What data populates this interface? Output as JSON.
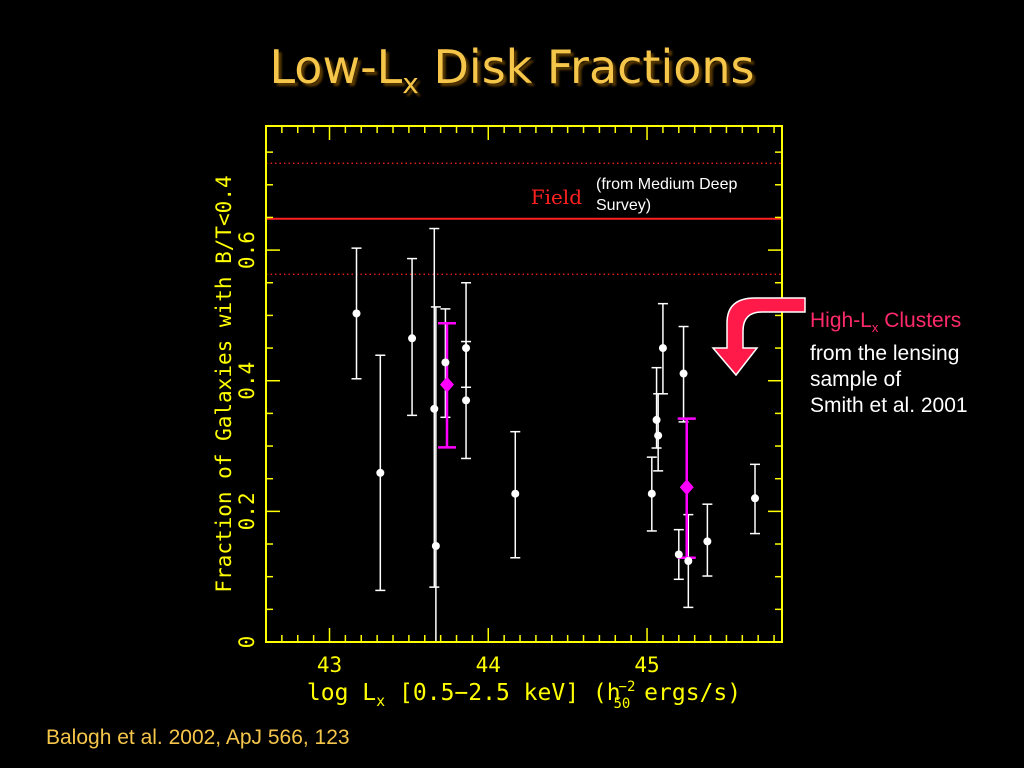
{
  "slide": {
    "title_main": "Low-L",
    "title_sub": "x",
    "title_rest": " Disk Fractions",
    "citation": "Balogh et al. 2002, ApJ 566, 123"
  },
  "callout": {
    "line1_pink": "High-L",
    "line1_sub": "x",
    "line1_rest": " Clusters",
    "line2": "from the lensing",
    "line3": "sample of",
    "line4": "Smith et al. 2001",
    "arrow_color": "#ff1a4a"
  },
  "chart_data": {
    "type": "scatter",
    "xlabel_main": "log L",
    "xlabel_sub": "x",
    "xlabel_rest": " [0.5−2.5 keV] (h",
    "xlabel_h_sub": "50",
    "xlabel_h_sup": "−2",
    "xlabel_end": " ergs/s)",
    "ylabel": "Fraction of Galaxies with B/T<0.4",
    "xlim": [
      42.6,
      45.85
    ],
    "ylim": [
      0,
      0.79
    ],
    "x_ticks": [
      43,
      44,
      45
    ],
    "x_tick_labels": [
      "43",
      "44",
      "45"
    ],
    "y_ticks": [
      0,
      0.2,
      0.4,
      0.6
    ],
    "y_tick_labels": [
      "0",
      "0.2",
      "0.4",
      "0.6"
    ],
    "axis_color": "#ffff00",
    "field": {
      "label": "Field",
      "note_line1": "(from Medium Deep",
      "note_line2": "Survey)",
      "value": 0.648,
      "band": [
        0.563,
        0.733
      ],
      "color": "#ff2020"
    },
    "series": [
      {
        "color": "#ffffff",
        "points": [
          {
            "x": 43.17,
            "y": 0.503,
            "ylo": 0.403,
            "yhi": 0.603
          },
          {
            "x": 43.32,
            "y": 0.259,
            "ylo": 0.079,
            "yhi": 0.439
          },
          {
            "x": 43.52,
            "y": 0.465,
            "ylo": 0.347,
            "yhi": 0.587
          },
          {
            "x": 43.66,
            "y": 0.357,
            "ylo": 0.084,
            "yhi": 0.633
          },
          {
            "x": 43.67,
            "y": 0.147,
            "ylo": 0.0,
            "yhi": 0.513
          },
          {
            "x": 43.73,
            "y": 0.428,
            "ylo": 0.344,
            "yhi": 0.51
          },
          {
            "x": 43.86,
            "y": 0.45,
            "ylo": 0.39,
            "yhi": 0.55
          },
          {
            "x": 43.86,
            "y": 0.37,
            "ylo": 0.281,
            "yhi": 0.46
          },
          {
            "x": 44.17,
            "y": 0.227,
            "ylo": 0.129,
            "yhi": 0.322
          },
          {
            "x": 45.03,
            "y": 0.227,
            "ylo": 0.17,
            "yhi": 0.283
          },
          {
            "x": 45.06,
            "y": 0.34,
            "ylo": 0.297,
            "yhi": 0.42
          },
          {
            "x": 45.07,
            "y": 0.316,
            "ylo": 0.262,
            "yhi": 0.38
          },
          {
            "x": 45.1,
            "y": 0.45,
            "ylo": 0.38,
            "yhi": 0.518
          },
          {
            "x": 45.2,
            "y": 0.134,
            "ylo": 0.096,
            "yhi": 0.172
          },
          {
            "x": 45.23,
            "y": 0.411,
            "ylo": 0.337,
            "yhi": 0.483
          },
          {
            "x": 45.26,
            "y": 0.124,
            "ylo": 0.053,
            "yhi": 0.195
          },
          {
            "x": 45.38,
            "y": 0.154,
            "ylo": 0.101,
            "yhi": 0.211
          },
          {
            "x": 45.68,
            "y": 0.22,
            "ylo": 0.166,
            "yhi": 0.272
          }
        ]
      },
      {
        "color": "#ff00ff",
        "marker": "diamond",
        "points": [
          {
            "x": 43.74,
            "y": 0.394,
            "ylo": 0.298,
            "yhi": 0.488
          },
          {
            "x": 45.25,
            "y": 0.237,
            "ylo": 0.129,
            "yhi": 0.342
          }
        ]
      }
    ]
  }
}
